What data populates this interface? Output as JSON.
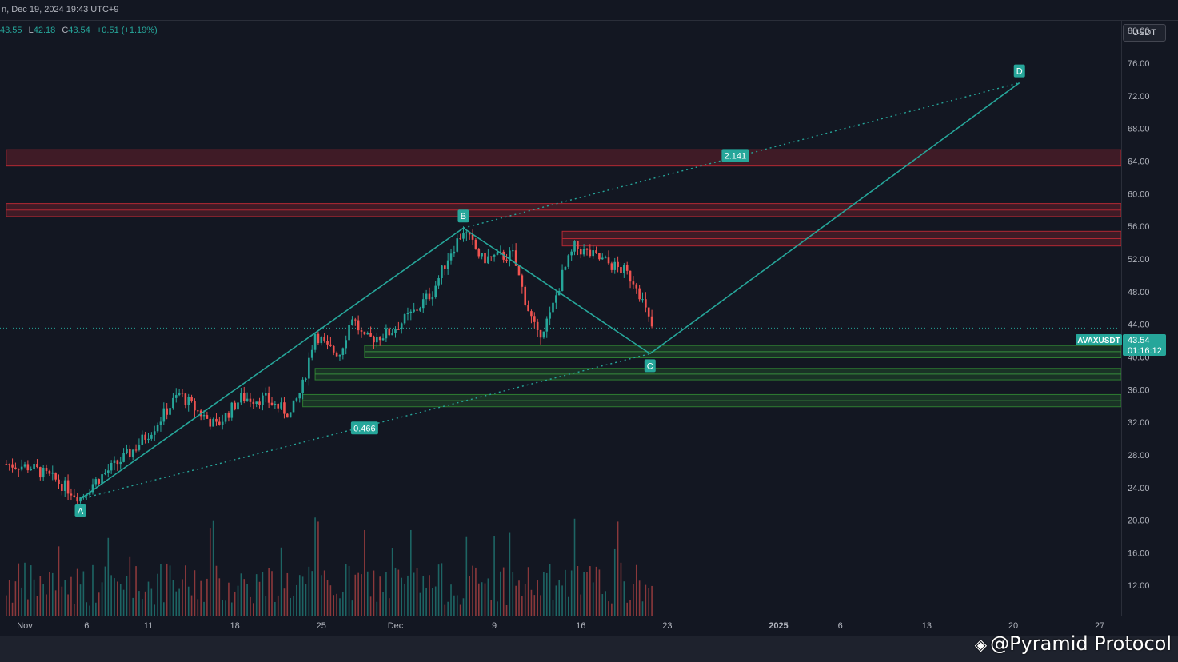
{
  "header": {
    "date_text": "n, Dec 19, 2024 19:43 UTC+9",
    "ohlc": [
      {
        "label": "",
        "value": "43.55"
      },
      {
        "label": "L",
        "value": "42.18"
      },
      {
        "label": "C",
        "value": "43.54"
      },
      {
        "label": "",
        "value": "+0.51 (+1.19%)"
      }
    ]
  },
  "axis": {
    "currency": "USDT"
  },
  "price_tag": {
    "symbol": "AVAXUSDT",
    "price": "43.54",
    "countdown": "01:16:12"
  },
  "watermark": {
    "text": "@Pyramid Protocol"
  },
  "chart_data": {
    "type": "candlestick",
    "symbol": "AVAXUSDT",
    "y_ticks": [
      "80.00",
      "76.00",
      "72.00",
      "68.00",
      "64.00",
      "60.00",
      "56.00",
      "52.00",
      "48.00",
      "44.00",
      "40.00",
      "36.00",
      "32.00",
      "28.00",
      "24.00",
      "20.00",
      "16.00",
      "12.00"
    ],
    "ylim": [
      8.3,
      81.2
    ],
    "x_ticks": [
      {
        "label": "Nov",
        "day": 0
      },
      {
        "label": "6",
        "day": 5
      },
      {
        "label": "11",
        "day": 10
      },
      {
        "label": "18",
        "day": 17
      },
      {
        "label": "25",
        "day": 24
      },
      {
        "label": "Dec",
        "day": 30
      },
      {
        "label": "9",
        "day": 38
      },
      {
        "label": "16",
        "day": 45
      },
      {
        "label": "23",
        "day": 52
      },
      {
        "label": "2025",
        "day": 61
      },
      {
        "label": "6",
        "day": 66
      },
      {
        "label": "13",
        "day": 73
      },
      {
        "label": "20",
        "day": 80
      },
      {
        "label": "27",
        "day": 87
      }
    ],
    "price_path": [
      [
        -1.5,
        26.9
      ],
      [
        0.5,
        26.5
      ],
      [
        2.5,
        24.9
      ],
      [
        4.5,
        22.8
      ],
      [
        5.5,
        24.5
      ],
      [
        6.5,
        25.8
      ],
      [
        8.5,
        28.2
      ],
      [
        10.5,
        31.5
      ],
      [
        12.5,
        35.5
      ],
      [
        13.5,
        34.0
      ],
      [
        15.5,
        31.5
      ],
      [
        17.5,
        35.0
      ],
      [
        19.5,
        34.8
      ],
      [
        21.5,
        33.0
      ],
      [
        22.5,
        36.5
      ],
      [
        23.5,
        43.0
      ],
      [
        24.5,
        41.0
      ],
      [
        25.5,
        40.5
      ],
      [
        26.5,
        45.0
      ],
      [
        27.5,
        42.0
      ],
      [
        29.5,
        43.0
      ],
      [
        31.5,
        45.5
      ],
      [
        33,
        48.0
      ],
      [
        34.5,
        53.0
      ],
      [
        35.5,
        55.5
      ],
      [
        37,
        52.0
      ],
      [
        39.5,
        52.5
      ],
      [
        40.5,
        47.0
      ],
      [
        41.5,
        42.5
      ],
      [
        42.5,
        45.0
      ],
      [
        43.5,
        50.0
      ],
      [
        44.5,
        53.5
      ],
      [
        46.5,
        52.0
      ],
      [
        48.5,
        50.5
      ],
      [
        49.5,
        49.0
      ],
      [
        50.5,
        44.5
      ],
      [
        50.8,
        43.5
      ]
    ],
    "patterns": [
      {
        "label": "A",
        "day": 4.5,
        "price": 22.6
      },
      {
        "label": "B",
        "day": 35.5,
        "price": 55.8
      },
      {
        "label": "C",
        "day": 50.6,
        "price": 40.4
      },
      {
        "label": "D",
        "day": 80.5,
        "price": 73.6
      }
    ],
    "ratios": [
      {
        "label": "0.466",
        "day": 27.5,
        "price": 31.3
      },
      {
        "label": "2.141",
        "day": 57.5,
        "price": 64.7
      }
    ],
    "resistance_zones": [
      {
        "from_day": -1.5,
        "to_day": 92,
        "low": 63.4,
        "high": 65.4
      },
      {
        "from_day": -1.5,
        "to_day": 92,
        "low": 57.2,
        "high": 58.8
      },
      {
        "from_day": 43.5,
        "to_day": 92,
        "low": 53.6,
        "high": 55.4
      }
    ],
    "support_zones": [
      {
        "from_day": 27.5,
        "to_day": 92,
        "low": 39.9,
        "high": 41.4
      },
      {
        "from_day": 23.5,
        "to_day": 92,
        "low": 37.2,
        "high": 38.6
      },
      {
        "from_day": 22.5,
        "to_day": 92,
        "low": 33.9,
        "high": 35.4
      }
    ],
    "current_price": 43.54,
    "grid": false,
    "legend": "none"
  }
}
